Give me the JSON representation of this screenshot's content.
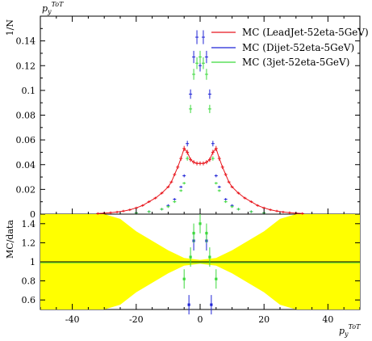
{
  "chart_data": [
    {
      "type": "scatter",
      "ylabel": "1/N",
      "title_italic": "p",
      "title_sub": "y",
      "title_sup": "ToT",
      "xlim": [
        -50,
        50
      ],
      "ylim": [
        0,
        0.16
      ],
      "yticks": [
        0,
        0.02,
        0.04,
        0.06,
        0.08,
        0.1,
        0.12,
        0.14
      ],
      "ytick_labels": [
        "0",
        "0.02",
        "0.04",
        "0.06",
        "0.08",
        "0.1",
        "0.12",
        "0.14"
      ],
      "legend_position": "top-right",
      "series": [
        {
          "name": "MC (LeadJet-52eta-5GeV)",
          "color": "#e8161d",
          "x": [
            -32,
            -30,
            -28,
            -26,
            -24,
            -22,
            -20,
            -18,
            -16,
            -14,
            -12,
            -10,
            -9,
            -8,
            -7,
            -6,
            -5,
            -4,
            -3,
            -2,
            -1,
            0,
            1,
            2,
            3,
            4,
            5,
            6,
            7,
            8,
            9,
            10,
            12,
            14,
            16,
            18,
            20,
            22,
            24,
            26,
            28,
            30,
            32
          ],
          "y": [
            0.0005,
            0.0008,
            0.0012,
            0.0017,
            0.0025,
            0.0035,
            0.005,
            0.007,
            0.01,
            0.013,
            0.017,
            0.022,
            0.026,
            0.032,
            0.038,
            0.045,
            0.053,
            0.05,
            0.044,
            0.042,
            0.041,
            0.041,
            0.041,
            0.042,
            0.044,
            0.05,
            0.053,
            0.045,
            0.038,
            0.032,
            0.026,
            0.022,
            0.017,
            0.013,
            0.01,
            0.007,
            0.005,
            0.0035,
            0.0025,
            0.0017,
            0.0012,
            0.0008,
            0.0005
          ]
        },
        {
          "name": "MC (Dijet-52eta-5GeV)",
          "color": "#1f24d6",
          "x": [
            -20,
            -16,
            -12,
            -10,
            -8,
            -6,
            -5,
            -4,
            -3,
            -2,
            -1,
            0,
            1,
            2,
            3,
            4,
            5,
            6,
            8,
            10,
            12,
            16,
            20
          ],
          "y": [
            0.001,
            0.002,
            0.004,
            0.007,
            0.012,
            0.022,
            0.031,
            0.057,
            0.097,
            0.127,
            0.143,
            0.12,
            0.143,
            0.127,
            0.097,
            0.057,
            0.031,
            0.022,
            0.012,
            0.007,
            0.004,
            0.002,
            0.001
          ]
        },
        {
          "name": "MC (3jet-52eta-5GeV)",
          "color": "#3cd93c",
          "x": [
            -20,
            -16,
            -12,
            -10,
            -8,
            -6,
            -5,
            -4,
            -3,
            -2,
            -1,
            0,
            1,
            2,
            3,
            4,
            5,
            6,
            8,
            10,
            12,
            16,
            20
          ],
          "y": [
            0.001,
            0.002,
            0.004,
            0.006,
            0.01,
            0.019,
            0.025,
            0.045,
            0.085,
            0.113,
            0.122,
            0.127,
            0.122,
            0.113,
            0.085,
            0.045,
            0.025,
            0.019,
            0.01,
            0.006,
            0.004,
            0.002,
            0.001
          ]
        }
      ]
    },
    {
      "type": "scatter",
      "ylabel": "MC/data",
      "xlabel_italic": "p",
      "xlabel_sub": "y",
      "xlabel_sup": "ToT",
      "xlim": [
        -50,
        50
      ],
      "ylim": [
        0.5,
        1.5
      ],
      "yticks": [
        0.6,
        0.8,
        1,
        1.2,
        1.4
      ],
      "ytick_labels": [
        "0.6",
        "0.8",
        "1",
        "1.2",
        "1.4"
      ],
      "xticks": [
        -40,
        -20,
        0,
        20,
        40
      ],
      "xtick_labels": [
        "-40",
        "-20",
        "0",
        "20",
        "40"
      ],
      "band_color": "#ffff00",
      "reference": 1,
      "band": {
        "x": [
          -50,
          -40,
          -35,
          -30,
          -25,
          -20,
          -15,
          -10,
          -5,
          0,
          5,
          10,
          15,
          20,
          25,
          30,
          35,
          40,
          50
        ],
        "half_width": [
          1.0,
          1.0,
          0.9,
          0.6,
          0.45,
          0.32,
          0.22,
          0.12,
          0.04,
          0.02,
          0.04,
          0.12,
          0.22,
          0.32,
          0.45,
          0.6,
          0.9,
          1.0,
          1.0
        ]
      },
      "series": [
        {
          "name": "MC (LeadJet-52eta-5GeV)",
          "color": "#e8161d",
          "x": [],
          "y": []
        },
        {
          "name": "MC (Dijet-52eta-5GeV)",
          "color": "#1f24d6",
          "x": [
            -3.5,
            -2,
            3.5,
            2
          ],
          "y": [
            0.55,
            1.22,
            0.55,
            1.22
          ]
        },
        {
          "name": "MC (3jet-52eta-5GeV)",
          "color": "#3cd93c",
          "x": [
            -5,
            -3,
            -2,
            0,
            2,
            3,
            5
          ],
          "y": [
            0.82,
            1.05,
            1.3,
            1.4,
            1.3,
            1.05,
            0.82
          ]
        }
      ]
    }
  ]
}
